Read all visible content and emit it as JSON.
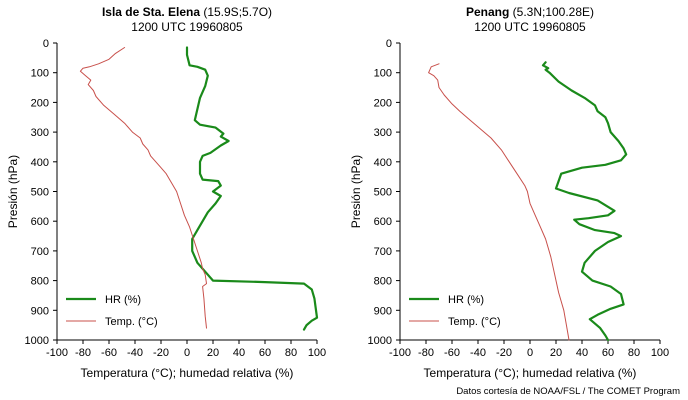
{
  "chart_data": [
    {
      "type": "line",
      "title_bold": "Isla de Sta. Elena",
      "title_rest": " (15.9S;5.7O)",
      "subtitle": "1200 UTC 19960805",
      "xlabel": "Temperatura (°C); humedad relativa (%)",
      "ylabel": "Presión (hPa)",
      "xlim": [
        -100,
        100
      ],
      "ylim": [
        0,
        1000
      ],
      "y_inverted": true,
      "xticks": [
        "-100",
        "-80",
        "-60",
        "-40",
        "-20",
        "0",
        "20",
        "40",
        "60",
        "80",
        "100"
      ],
      "yticks": [
        "0",
        "100",
        "200",
        "300",
        "400",
        "500",
        "600",
        "700",
        "800",
        "900",
        "1000"
      ],
      "legend_position": "bottom-left",
      "series": [
        {
          "name": "HR (%)",
          "color": "#1a8a1a",
          "x": [
            0,
            0,
            2,
            8,
            14,
            16,
            14,
            10,
            6,
            10,
            22,
            28,
            26,
            32,
            26,
            18,
            12,
            10,
            10,
            12,
            24,
            26,
            20,
            26,
            22,
            16,
            12,
            8,
            4,
            4,
            8,
            14,
            20,
            60,
            90,
            96,
            98,
            100,
            96,
            92,
            90
          ],
          "y": [
            15,
            40,
            75,
            80,
            90,
            110,
            145,
            185,
            260,
            275,
            285,
            305,
            315,
            330,
            345,
            370,
            380,
            400,
            440,
            460,
            465,
            480,
            500,
            515,
            540,
            570,
            600,
            630,
            660,
            700,
            740,
            770,
            800,
            805,
            810,
            830,
            860,
            925,
            935,
            950,
            965
          ]
        },
        {
          "name": "Temp. (°C)",
          "color": "#c8504b",
          "x": [
            -48,
            -55,
            -60,
            -68,
            -75,
            -80,
            -82,
            -78,
            -74,
            -76,
            -72,
            -70,
            -64,
            -56,
            -48,
            -42,
            -36,
            -34,
            -30,
            -28,
            -24,
            -20,
            -16,
            -12,
            -8,
            -5,
            -2,
            2,
            5,
            8,
            11,
            12,
            14,
            15,
            12,
            13,
            14,
            15
          ],
          "y": [
            15,
            35,
            55,
            70,
            80,
            85,
            95,
            110,
            125,
            140,
            160,
            180,
            210,
            240,
            270,
            300,
            320,
            340,
            360,
            380,
            400,
            420,
            440,
            470,
            500,
            540,
            580,
            620,
            660,
            700,
            740,
            760,
            780,
            810,
            820,
            860,
            920,
            960
          ]
        }
      ]
    },
    {
      "type": "line",
      "title_bold": "Penang",
      "title_rest": " (5.3N;100.28E)",
      "subtitle": "1200 UTC 19960805",
      "xlabel": "Temperatura (°C); humedad relativa (%)",
      "ylabel": "Presión (hPa)",
      "xlim": [
        -100,
        100
      ],
      "ylim": [
        0,
        1000
      ],
      "y_inverted": true,
      "xticks": [
        "-100",
        "-80",
        "-60",
        "-40",
        "-20",
        "0",
        "20",
        "40",
        "60",
        "80",
        "100"
      ],
      "yticks": [
        "0",
        "100",
        "200",
        "300",
        "400",
        "500",
        "600",
        "700",
        "800",
        "900",
        "1000"
      ],
      "legend_position": "bottom-left",
      "series": [
        {
          "name": "HR (%)",
          "color": "#1a8a1a",
          "x": [
            12,
            10,
            14,
            12,
            15,
            22,
            32,
            42,
            50,
            52,
            58,
            60,
            62,
            68,
            72,
            74,
            70,
            58,
            40,
            24,
            20,
            30,
            52,
            65,
            60,
            45,
            34,
            38,
            50,
            65,
            70,
            60,
            50,
            42,
            40,
            48,
            62,
            70,
            72,
            62,
            52,
            46,
            54,
            58,
            60
          ],
          "y": [
            65,
            75,
            85,
            90,
            100,
            130,
            160,
            185,
            210,
            230,
            250,
            270,
            300,
            330,
            355,
            375,
            395,
            410,
            420,
            440,
            490,
            505,
            530,
            565,
            580,
            590,
            595,
            610,
            630,
            640,
            650,
            670,
            700,
            740,
            770,
            800,
            820,
            845,
            880,
            895,
            915,
            930,
            960,
            985,
            1000
          ]
        },
        {
          "name": "Temp. (°C)",
          "color": "#c8504b",
          "x": [
            -70,
            -76,
            -78,
            -74,
            -71,
            -70,
            -66,
            -60,
            -54,
            -46,
            -38,
            -30,
            -22,
            -16,
            -10,
            -4,
            -2,
            0,
            4,
            8,
            12,
            14,
            16,
            18,
            20,
            22,
            24,
            26,
            28,
            30
          ],
          "y": [
            70,
            80,
            100,
            110,
            125,
            150,
            175,
            205,
            230,
            260,
            290,
            320,
            360,
            400,
            440,
            480,
            500,
            540,
            580,
            620,
            660,
            690,
            720,
            760,
            800,
            840,
            870,
            900,
            950,
            1000
          ]
        }
      ]
    }
  ],
  "footer": {
    "credit": "Datos cortesía de NOAA/FSL / The COMET Program"
  }
}
